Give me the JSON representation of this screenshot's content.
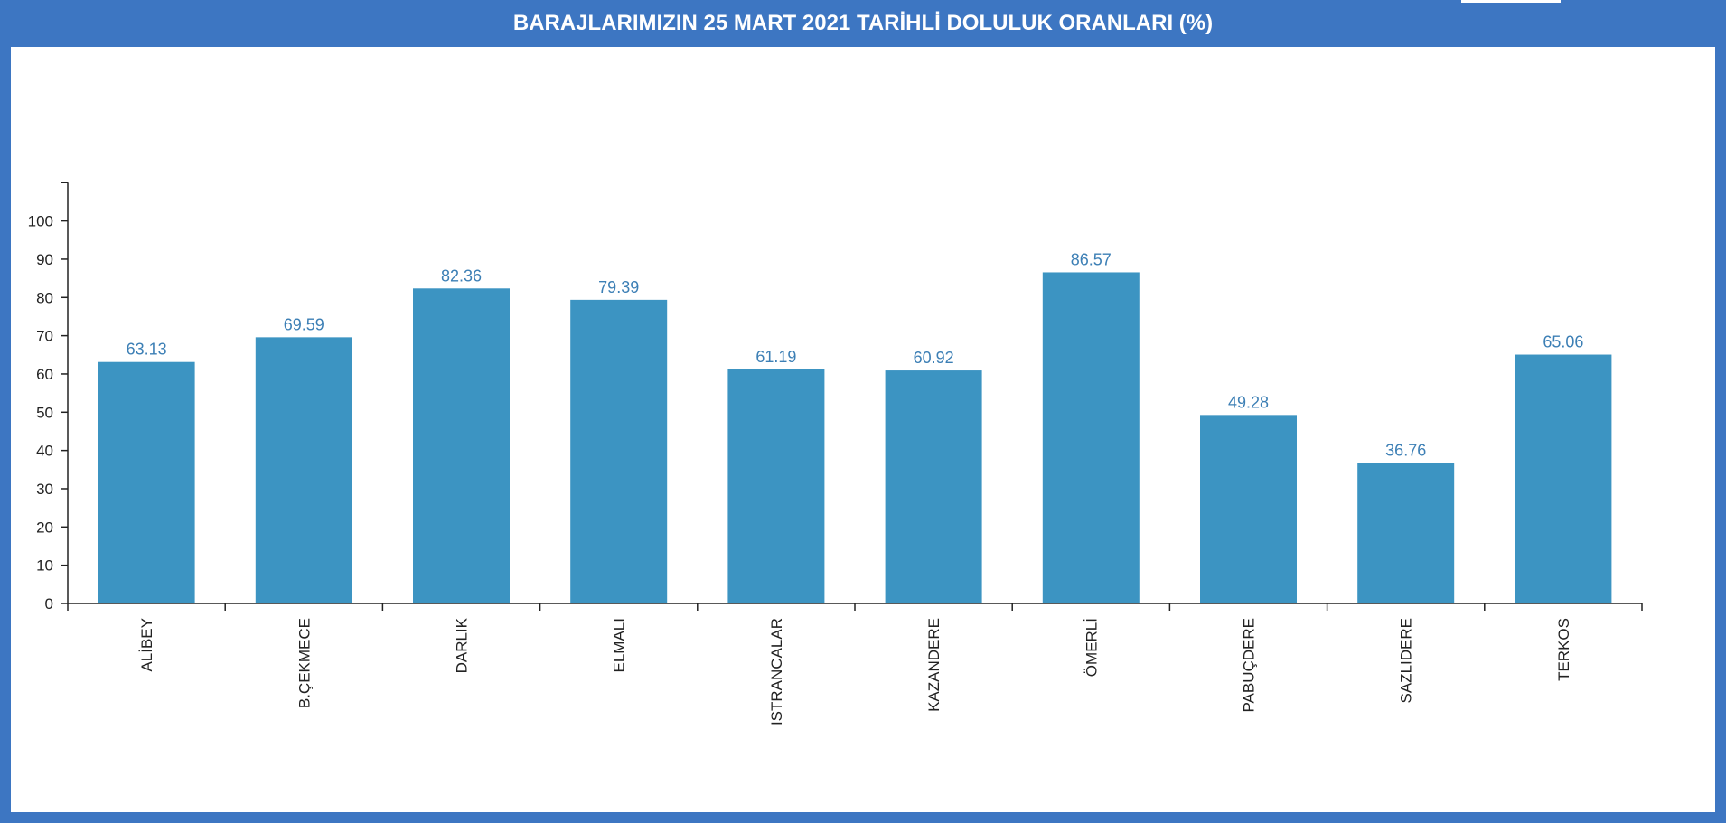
{
  "colors": {
    "frame": "#3d76c2",
    "bar": "#3c94c2",
    "value_label": "#3c7fb5",
    "axis": "#222222"
  },
  "chart_data": {
    "type": "bar",
    "title": "BARAJLARIMIZIN 25 MART 2021 TARİHLİ DOLULUK ORANLARI (%)",
    "xlabel": "",
    "ylabel": "",
    "categories": [
      "ALİBEY",
      "B.ÇEKMECE",
      "DARLIK",
      "ELMALI",
      "ISTRANCALAR",
      "KAZANDERE",
      "ÖMERLİ",
      "PABUÇDERE",
      "SAZLIDERE",
      "TERKOS"
    ],
    "values": [
      63.13,
      69.59,
      82.36,
      79.39,
      61.19,
      60.92,
      86.57,
      49.28,
      36.76,
      65.06
    ],
    "value_labels": [
      "63.13",
      "69.59",
      "82.36",
      "79.39",
      "61.19",
      "60.92",
      "86.57",
      "49.28",
      "36.76",
      "65.06"
    ],
    "ylim": [
      0,
      110
    ],
    "yticks": [
      0,
      10,
      20,
      30,
      40,
      50,
      60,
      70,
      80,
      90,
      100
    ],
    "grid": false,
    "legend": "none"
  }
}
